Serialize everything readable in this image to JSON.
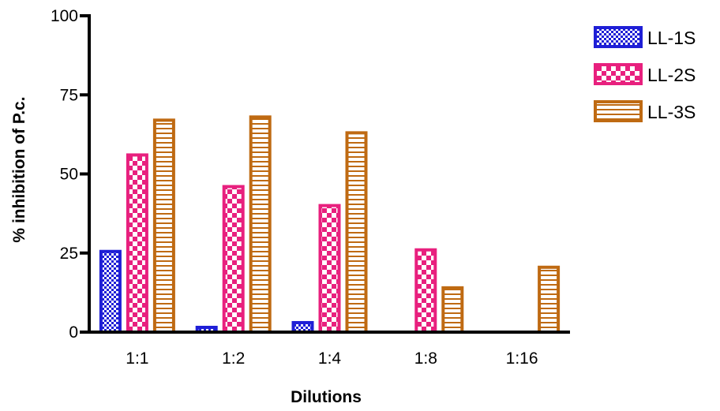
{
  "chart_data": {
    "type": "bar",
    "title": "",
    "xlabel": "Dilutions",
    "ylabel": "% inhibition of P.c.",
    "categories": [
      "1:1",
      "1:2",
      "1:4",
      "1:8",
      "1:16"
    ],
    "ylim": [
      0,
      100
    ],
    "yticks": [
      0,
      25,
      50,
      75,
      100
    ],
    "grid": false,
    "legend_position": "top-right",
    "series": [
      {
        "name": "LL-1S",
        "values": [
          25.5,
          1.5,
          3,
          null,
          null
        ],
        "color": "#1f1fd6",
        "pattern": "checkerboard"
      },
      {
        "name": "LL-2S",
        "values": [
          56,
          46,
          40,
          26,
          null
        ],
        "color": "#e8207e",
        "pattern": "large-checker"
      },
      {
        "name": "LL-3S",
        "values": [
          67,
          68,
          63,
          14,
          20.5
        ],
        "color": "#bf6a12",
        "pattern": "horizontal-stripes"
      }
    ]
  }
}
